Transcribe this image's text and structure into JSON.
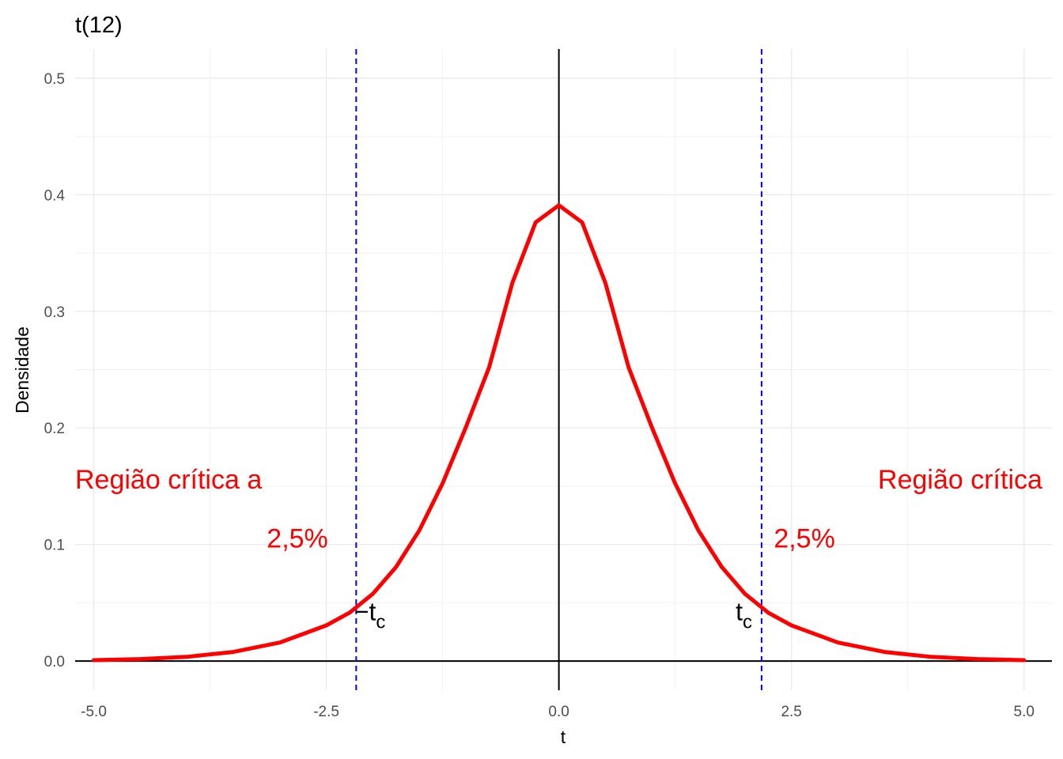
{
  "chart_data": {
    "type": "line",
    "title": "t(12)",
    "xlabel": "t",
    "ylabel": "Densidade",
    "xlim": [
      -5.2,
      5.3
    ],
    "ylim": [
      -0.025,
      0.525
    ],
    "x_ticks": [
      -5,
      -2.5,
      0,
      2.5,
      5
    ],
    "x_tick_labels": [
      "-5.0",
      "-2.5",
      "0.0",
      "2.5",
      "5.0"
    ],
    "y_ticks": [
      0,
      0.1,
      0.2,
      0.3,
      0.4,
      0.5
    ],
    "y_tick_labels": [
      "0.0",
      "0.1",
      "0.2",
      "0.3",
      "0.4",
      "0.5"
    ],
    "grid": true,
    "series": [
      {
        "color": "#ff0000",
        "x": [
          -5.0,
          -4.5,
          -4.0,
          -3.5,
          -3.0,
          -2.5,
          -2.25,
          -2.0,
          -1.75,
          -1.5,
          -1.25,
          -1.0,
          -0.75,
          -0.5,
          -0.25,
          0.0,
          0.25,
          0.5,
          0.75,
          1.0,
          1.25,
          1.5,
          1.75,
          2.0,
          2.25,
          2.5,
          3.0,
          3.5,
          4.0,
          4.5,
          5.0
        ],
        "y": [
          0.0008,
          0.0017,
          0.0036,
          0.0078,
          0.0159,
          0.0306,
          0.0415,
          0.0577,
          0.0807,
          0.1121,
          0.1524,
          0.2005,
          0.2519,
          0.3244,
          0.3763,
          0.391,
          0.3763,
          0.3244,
          0.2519,
          0.2005,
          0.1524,
          0.1121,
          0.0807,
          0.0577,
          0.0415,
          0.0306,
          0.0159,
          0.0078,
          0.0036,
          0.0017,
          0.0008
        ]
      }
    ],
    "reference_lines": {
      "vertical_solid": 0.0,
      "horizontal_solid": 0.0,
      "critical_values": [
        -2.179,
        2.179
      ],
      "critical_color": "#0000ff"
    },
    "annotations": [
      {
        "text": "Região crítica a",
        "x": -5.2,
        "y": 0.148,
        "color": "#ff0000"
      },
      {
        "text": "Região crítica",
        "x": 3.43,
        "y": 0.148,
        "color": "#ff0000"
      },
      {
        "text": "2,5%",
        "x": -3.14,
        "y": 0.0975,
        "color": "#ff0000"
      },
      {
        "text": "2,5%",
        "x": 2.31,
        "y": 0.0975,
        "color": "#ff0000"
      },
      {
        "text": "−t",
        "subscript": "c",
        "x": -2.2,
        "y": 0.035,
        "color": "#000000"
      },
      {
        "text": "t",
        "subscript": "c",
        "x": 1.9,
        "y": 0.035,
        "color": "#000000"
      }
    ]
  }
}
